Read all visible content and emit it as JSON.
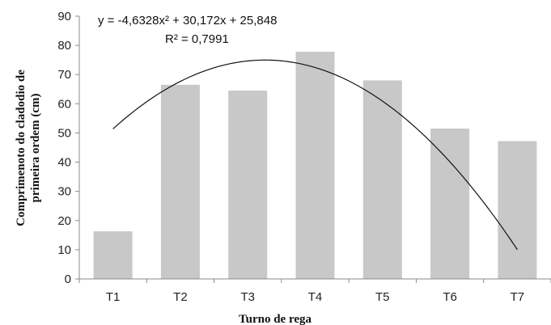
{
  "chart_data": {
    "type": "bar",
    "categories": [
      "T1",
      "T2",
      "T3",
      "T4",
      "T5",
      "T6",
      "T7"
    ],
    "values": [
      16.3,
      66.5,
      64.5,
      77.8,
      68.0,
      51.5,
      47.2
    ],
    "xlabel": "Turno de rega",
    "ylabel_line1": "Comprimenoto do cladodio de",
    "ylabel_line2": "primeira ordem (cm)",
    "ylim": [
      0,
      90
    ],
    "yticks": [
      0,
      10,
      20,
      30,
      40,
      50,
      60,
      70,
      80,
      90
    ],
    "grid": false,
    "bar_color": "#c8c8c8",
    "trendline": {
      "type": "polynomial-2",
      "coefficients": [
        -4.6328,
        30.172,
        25.848
      ],
      "equation": "y = -4,6328x² + 30,172x + 25,848",
      "r_squared": "R² = 0,7991",
      "color": "#111111"
    }
  }
}
